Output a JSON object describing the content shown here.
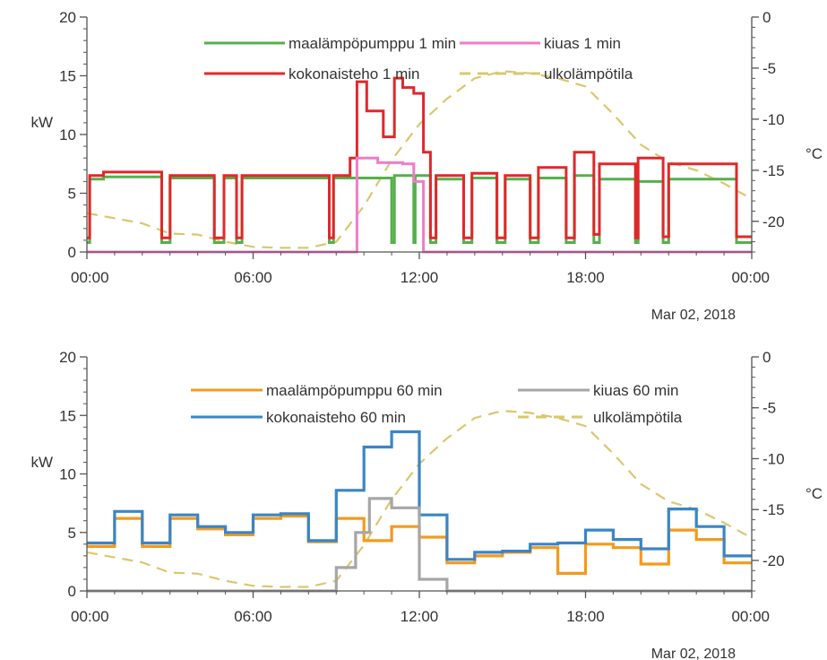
{
  "chart_data": [
    {
      "type": "line",
      "title": "",
      "xlabel": "",
      "ylabel": "kW",
      "y2label": "°C",
      "date_label": "Mar 02, 2018",
      "x_ticks": [
        "00:00",
        "06:00",
        "12:00",
        "18:00",
        "00:00"
      ],
      "x_range_hours": [
        0,
        24
      ],
      "ylim": [
        0,
        20
      ],
      "y_ticks": [
        "0",
        "5",
        "10",
        "15",
        "20"
      ],
      "y2lim": [
        -23,
        0
      ],
      "y2_ticks": [
        "-20",
        "-15",
        "-10",
        "-5",
        "0"
      ],
      "grid": false,
      "legend_position": "top-right",
      "colors": {
        "maalampo": "#55b04a",
        "kiuas": "#f07bc9",
        "kokonais": "#e0282a",
        "ulko": "#d9c770"
      },
      "legend": [
        {
          "key": "maalampo",
          "label": "maalämpöpumppu 1 min"
        },
        {
          "key": "kiuas",
          "label": "kiuas 1 min"
        },
        {
          "key": "kokonais",
          "label": "kokonaisteho 1 min"
        },
        {
          "key": "ulko",
          "label": "ulkolämpötila"
        }
      ],
      "series": [
        {
          "key": "maalampo",
          "axis": "left",
          "style": "step",
          "x": [
            0,
            0.1,
            0.6,
            2.7,
            3.0,
            4.6,
            4.95,
            5.4,
            5.6,
            8.75,
            8.9,
            11,
            11.1,
            11.8,
            11.85,
            12.4,
            12.6,
            13.6,
            13.9,
            14.8,
            15.1,
            16,
            16.3,
            17.3,
            17.6,
            18.3,
            18.5,
            19.8,
            19.9,
            20.8,
            21.0,
            23.45,
            23.6,
            24
          ],
          "y": [
            0.8,
            6.2,
            6.4,
            0.8,
            6.3,
            0.8,
            6.3,
            0.8,
            6.3,
            0.8,
            6.3,
            0.8,
            6.5,
            0.8,
            6.5,
            0.8,
            6.2,
            0.8,
            6.3,
            0.8,
            6.2,
            0.8,
            6.3,
            0.8,
            6.5,
            0.8,
            6.2,
            0.8,
            6.0,
            0.8,
            6.2,
            0.8,
            0.8,
            0.8
          ]
        },
        {
          "key": "kiuas",
          "axis": "left",
          "style": "step",
          "x": [
            0,
            9.75,
            10.5,
            11.4,
            11.8,
            12.15,
            24
          ],
          "y": [
            0,
            8.0,
            7.6,
            7.5,
            6.0,
            0,
            0
          ]
        },
        {
          "key": "kokonais",
          "axis": "left",
          "style": "step",
          "x": [
            0,
            0.1,
            0.6,
            2.7,
            3.0,
            4.6,
            4.95,
            5.4,
            5.6,
            8.75,
            8.9,
            9.5,
            9.75,
            10.1,
            10.7,
            11.1,
            11.4,
            11.8,
            12.15,
            12.4,
            12.6,
            13.6,
            13.9,
            14.8,
            15.1,
            16,
            16.3,
            17.3,
            17.6,
            18.3,
            18.5,
            19.8,
            19.9,
            20.8,
            21.0,
            23.45,
            23.6,
            24
          ],
          "y": [
            1.2,
            6.5,
            6.8,
            1.2,
            6.5,
            1.2,
            6.5,
            1.2,
            6.5,
            1.2,
            6.5,
            8.0,
            14.5,
            12.0,
            9.8,
            14.8,
            14.0,
            13.5,
            8.5,
            1.2,
            6.5,
            1.2,
            6.7,
            1.2,
            6.5,
            1.2,
            7.2,
            1.2,
            8.5,
            1.5,
            7.5,
            1.2,
            8.0,
            1.3,
            7.5,
            1.3,
            1.3,
            1.3
          ]
        },
        {
          "key": "ulko",
          "axis": "right",
          "style": "dashed",
          "x": [
            0,
            1,
            2,
            3,
            4,
            5,
            6,
            7,
            8,
            9,
            10,
            11,
            12,
            13,
            14,
            15,
            16,
            17,
            18,
            19,
            20,
            21,
            22,
            23,
            24
          ],
          "y": [
            -19.2,
            -19.7,
            -20.2,
            -21.2,
            -21.3,
            -22.0,
            -22.5,
            -22.6,
            -22.6,
            -22.0,
            -18.5,
            -14.0,
            -10.5,
            -8.0,
            -6.0,
            -5.3,
            -5.5,
            -6.0,
            -6.8,
            -9.5,
            -12.5,
            -14.2,
            -15.0,
            -16.3,
            -17.8
          ]
        }
      ]
    },
    {
      "type": "line",
      "title": "",
      "xlabel": "",
      "ylabel": "kW",
      "y2label": "°C",
      "date_label": "Mar 02, 2018",
      "x_ticks": [
        "00:00",
        "06:00",
        "12:00",
        "18:00",
        "00:00"
      ],
      "x_range_hours": [
        0,
        24
      ],
      "ylim": [
        0,
        20
      ],
      "y_ticks": [
        "0",
        "5",
        "10",
        "15",
        "20"
      ],
      "y2lim": [
        -23,
        0
      ],
      "y2_ticks": [
        "-20",
        "-15",
        "-10",
        "-5",
        "0"
      ],
      "grid": false,
      "legend_position": "top-right",
      "colors": {
        "maalampo": "#f39a1d",
        "kiuas": "#a6a6a6",
        "kokonais": "#3a85c6",
        "ulko": "#d9c770"
      },
      "legend": [
        {
          "key": "maalampo",
          "label": "maalämpöpumppu 60 min"
        },
        {
          "key": "kiuas",
          "label": "kiuas 60 min"
        },
        {
          "key": "kokonais",
          "label": "kokonaisteho 60 min"
        },
        {
          "key": "ulko",
          "label": "ulkolämpötila"
        }
      ],
      "series": [
        {
          "key": "maalampo",
          "axis": "left",
          "style": "step",
          "x": [
            0,
            1,
            2,
            3,
            4,
            5,
            6,
            7,
            8,
            9,
            10,
            11,
            12,
            13,
            14,
            15,
            16,
            17,
            18,
            19,
            20,
            21,
            22,
            23,
            24
          ],
          "y": [
            3.8,
            6.2,
            3.8,
            6.2,
            5.3,
            4.8,
            6.2,
            6.4,
            4.2,
            6.2,
            4.3,
            5.5,
            4.6,
            2.4,
            3.0,
            3.3,
            3.7,
            1.5,
            4.0,
            3.7,
            2.3,
            5.2,
            4.4,
            2.4,
            2.4
          ]
        },
        {
          "key": "kiuas",
          "axis": "left",
          "style": "step",
          "x": [
            0,
            9,
            9.7,
            10.2,
            11,
            12,
            13,
            24
          ],
          "y": [
            0,
            2.0,
            5.0,
            7.9,
            7.1,
            1.0,
            0,
            0
          ]
        },
        {
          "key": "kokonais",
          "axis": "left",
          "style": "step",
          "x": [
            0,
            1,
            2,
            3,
            4,
            5,
            6,
            7,
            8,
            9,
            10,
            11,
            12,
            13,
            14,
            15,
            16,
            17,
            18,
            19,
            20,
            21,
            22,
            23,
            24
          ],
          "y": [
            4.1,
            6.8,
            4.1,
            6.5,
            5.5,
            5.0,
            6.5,
            6.6,
            4.3,
            8.6,
            12.3,
            13.6,
            6.5,
            2.7,
            3.3,
            3.4,
            4.0,
            4.1,
            5.2,
            4.4,
            3.6,
            7.0,
            5.5,
            3.0,
            3.0
          ]
        },
        {
          "key": "ulko",
          "axis": "right",
          "style": "dashed",
          "x": [
            0,
            1,
            2,
            3,
            4,
            5,
            6,
            7,
            8,
            9,
            10,
            11,
            12,
            13,
            14,
            15,
            16,
            17,
            18,
            19,
            20,
            21,
            22,
            23,
            24
          ],
          "y": [
            -19.2,
            -19.7,
            -20.2,
            -21.2,
            -21.3,
            -22.0,
            -22.5,
            -22.6,
            -22.6,
            -22.0,
            -18.5,
            -14.0,
            -10.5,
            -8.0,
            -6.0,
            -5.3,
            -5.5,
            -6.0,
            -6.8,
            -9.5,
            -12.5,
            -14.2,
            -15.0,
            -16.3,
            -17.8
          ]
        }
      ]
    }
  ]
}
